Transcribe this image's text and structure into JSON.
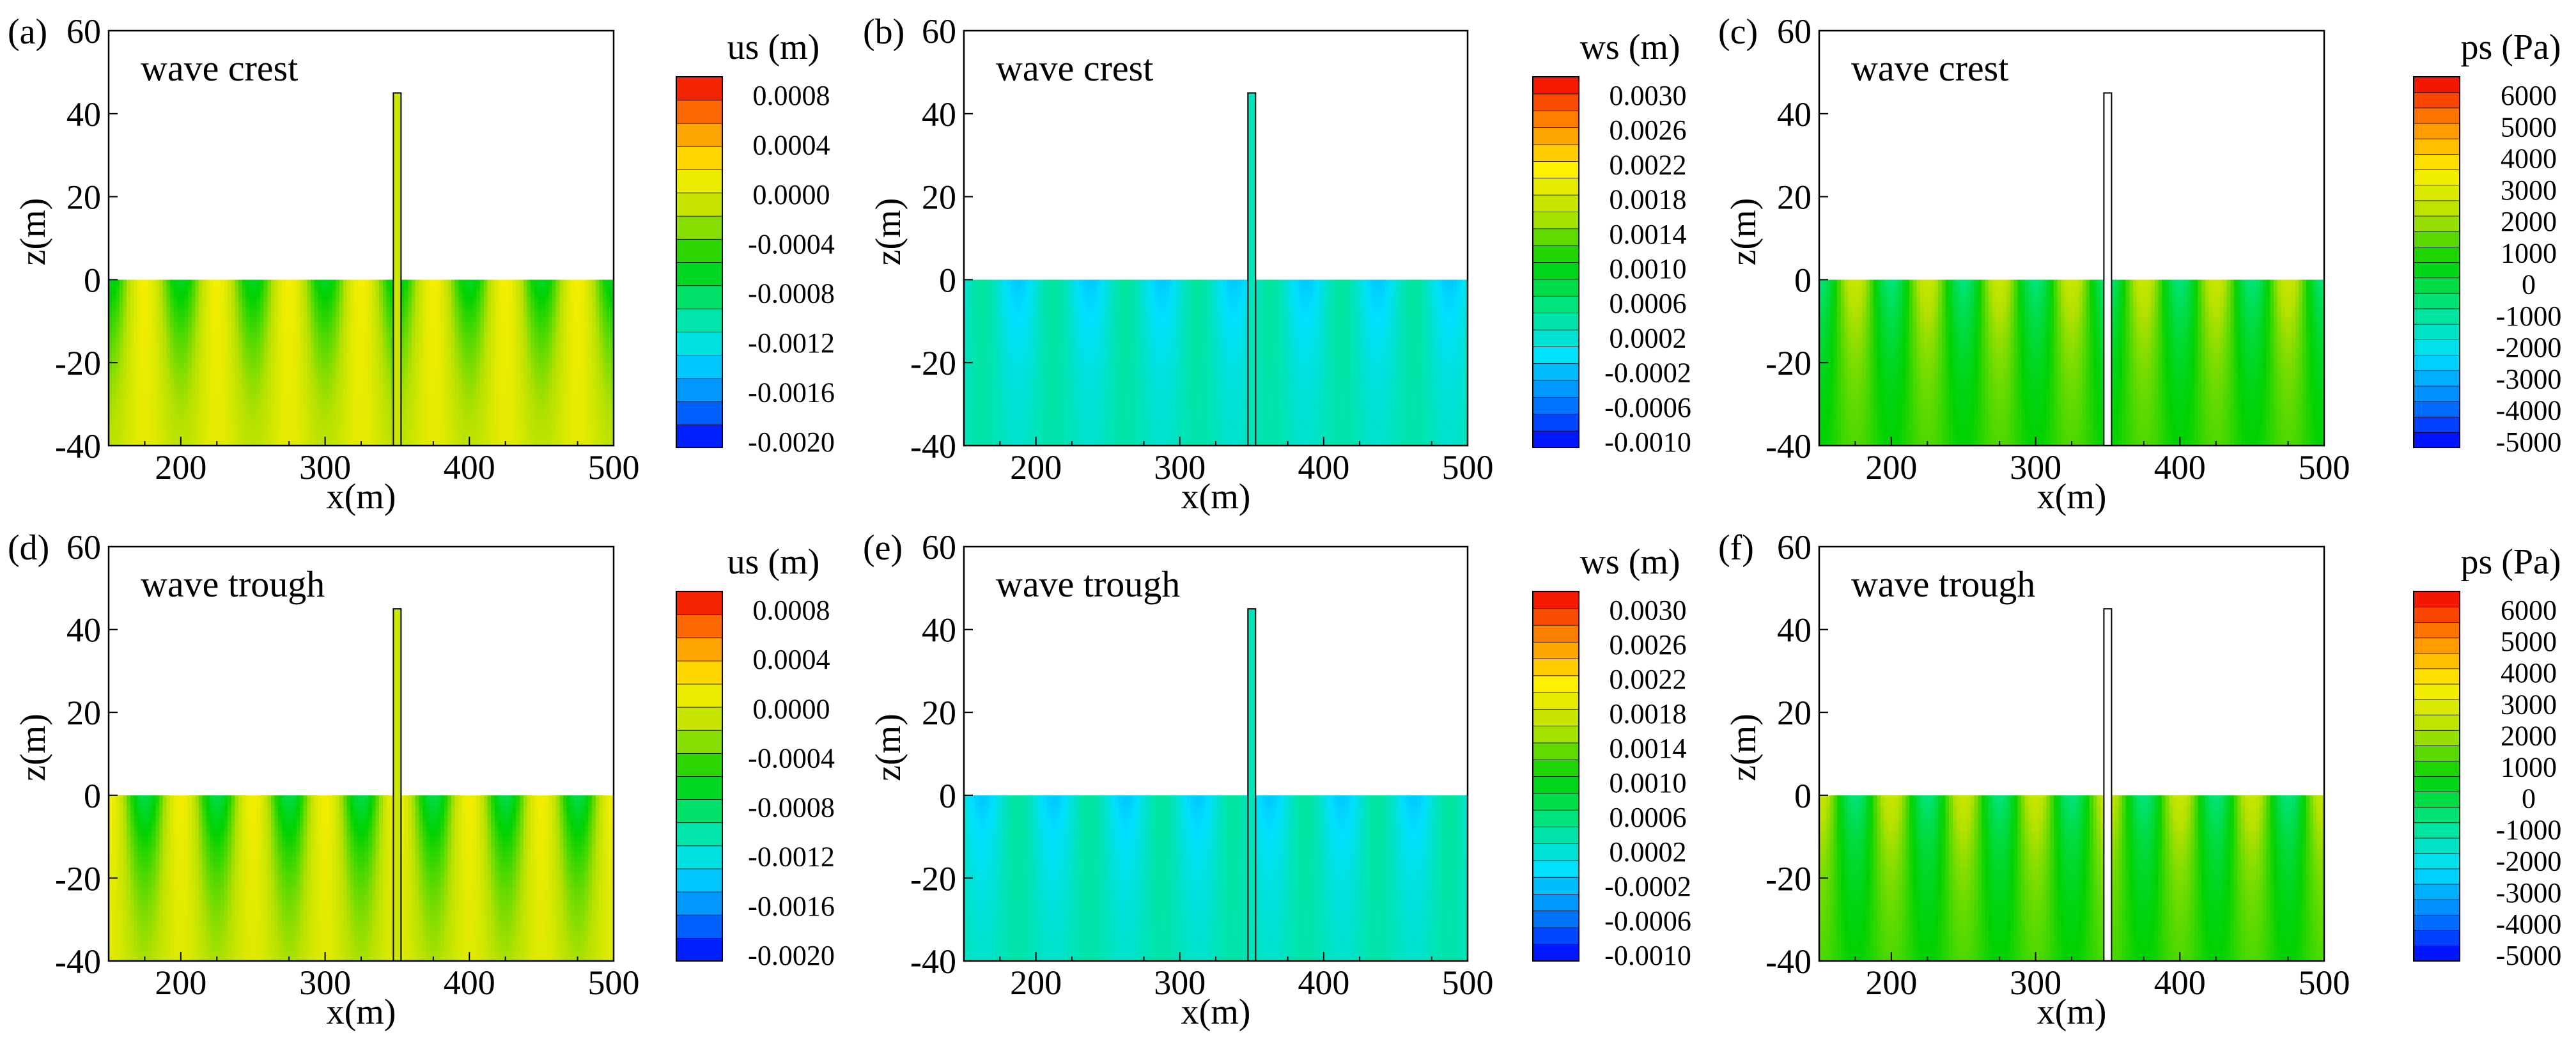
{
  "chart_data": [
    {
      "panel": "(a)",
      "annotation": "wave crest",
      "type": "heatmap",
      "xlabel": "x(m)",
      "ylabel": "z(m)",
      "xlim": [
        150,
        500
      ],
      "ylim": [
        -40,
        60
      ],
      "xticks": [
        "200",
        "300",
        "400",
        "500"
      ],
      "yticks": [
        "-40",
        "-20",
        "0",
        "20",
        "40",
        "60"
      ],
      "colorbar": {
        "title": "us (m)",
        "min": -0.002,
        "max": 0.001,
        "labels": [
          "0.0008",
          "0.0004",
          "0.0000",
          "-0.0004",
          "-0.0008",
          "-0.0012",
          "-0.0016",
          "-0.0020"
        ]
      },
      "field": {
        "mode": "us",
        "phase": 0,
        "base": -0.0002,
        "amp": 0.0004,
        "wavelength": 50,
        "decay": 30,
        "near": 0.0003
      },
      "pile": {
        "x": 350,
        "z_top": 45,
        "z_bottom": -40,
        "value": 0.0
      }
    },
    {
      "panel": "(b)",
      "annotation": "wave crest",
      "type": "heatmap",
      "xlabel": "x(m)",
      "ylabel": "z(m)",
      "xlim": [
        150,
        500
      ],
      "ylim": [
        -40,
        60
      ],
      "xticks": [
        "200",
        "300",
        "400",
        "500"
      ],
      "yticks": [
        "-40",
        "-20",
        "0",
        "20",
        "40",
        "60"
      ],
      "colorbar": {
        "title": "ws (m)",
        "min": -0.001,
        "max": 0.003,
        "labels": [
          "0.0030",
          "0.0026",
          "0.0022",
          "0.0018",
          "0.0014",
          "0.0010",
          "0.0006",
          "0.0002",
          "-0.0002",
          "-0.0006",
          "-0.0010"
        ]
      },
      "field": {
        "mode": "ws",
        "phase": 0,
        "base": 0.00035,
        "amp": 0.00035,
        "wavelength": 50,
        "decay": 30,
        "near": 0.0
      },
      "pile": {
        "x": 350,
        "z_top": 45,
        "z_bottom": -40,
        "value": 0.0003
      }
    },
    {
      "panel": "(c)",
      "annotation": "wave crest",
      "type": "heatmap",
      "xlabel": "x(m)",
      "ylabel": "z(m)",
      "xlim": [
        150,
        500
      ],
      "ylim": [
        -40,
        60
      ],
      "xticks": [
        "200",
        "300",
        "400",
        "500"
      ],
      "yticks": [
        "-40",
        "-20",
        "0",
        "20",
        "40",
        "60"
      ],
      "colorbar": {
        "title": "ps (Pa)",
        "min": -5000,
        "max": 6000,
        "labels": [
          "6000",
          "5000",
          "4000",
          "3000",
          "2000",
          "1000",
          "0",
          "-1000",
          "-2000",
          "-3000",
          "-4000",
          "-5000"
        ]
      },
      "field": {
        "mode": "ps",
        "phase": 0,
        "base": 800,
        "amp": 1500,
        "wavelength": 50,
        "decay": 25,
        "near": 0
      },
      "pile": {
        "x": 350,
        "z_top": 45,
        "z_bottom": -40,
        "value": null
      }
    },
    {
      "panel": "(d)",
      "annotation": "wave trough",
      "type": "heatmap",
      "xlabel": "x(m)",
      "ylabel": "z(m)",
      "xlim": [
        150,
        500
      ],
      "ylim": [
        -40,
        60
      ],
      "xticks": [
        "200",
        "300",
        "400",
        "500"
      ],
      "yticks": [
        "-40",
        "-20",
        "0",
        "20",
        "40",
        "60"
      ],
      "colorbar": {
        "title": "us (m)",
        "min": -0.002,
        "max": 0.001,
        "labels": [
          "0.0008",
          "0.0004",
          "0.0000",
          "-0.0004",
          "-0.0008",
          "-0.0012",
          "-0.0016",
          "-0.0020"
        ]
      },
      "field": {
        "mode": "us",
        "phase": 3.14159,
        "base": -0.00025,
        "amp": 0.00045,
        "wavelength": 50,
        "decay": 30,
        "near": 0.0003
      },
      "pile": {
        "x": 350,
        "z_top": 45,
        "z_bottom": -40,
        "value": 0.0
      }
    },
    {
      "panel": "(e)",
      "annotation": "wave trough",
      "type": "heatmap",
      "xlabel": "x(m)",
      "ylabel": "z(m)",
      "xlim": [
        150,
        500
      ],
      "ylim": [
        -40,
        60
      ],
      "xticks": [
        "200",
        "300",
        "400",
        "500"
      ],
      "yticks": [
        "-40",
        "-20",
        "0",
        "20",
        "40",
        "60"
      ],
      "colorbar": {
        "title": "ws (m)",
        "min": -0.001,
        "max": 0.003,
        "labels": [
          "0.0030",
          "0.0026",
          "0.0022",
          "0.0018",
          "0.0014",
          "0.0010",
          "0.0006",
          "0.0002",
          "-0.0002",
          "-0.0006",
          "-0.0010"
        ]
      },
      "field": {
        "mode": "ws",
        "phase": 3.14159,
        "base": 0.00035,
        "amp": 0.00035,
        "wavelength": 50,
        "decay": 30,
        "near": 0.0
      },
      "pile": {
        "x": 350,
        "z_top": 45,
        "z_bottom": -40,
        "value": 0.0003
      }
    },
    {
      "panel": "(f)",
      "annotation": "wave trough",
      "type": "heatmap",
      "xlabel": "x(m)",
      "ylabel": "z(m)",
      "xlim": [
        150,
        500
      ],
      "ylim": [
        -40,
        60
      ],
      "xticks": [
        "200",
        "300",
        "400",
        "500"
      ],
      "yticks": [
        "-40",
        "-20",
        "0",
        "20",
        "40",
        "60"
      ],
      "colorbar": {
        "title": "ps (Pa)",
        "min": -5000,
        "max": 6000,
        "labels": [
          "6000",
          "5000",
          "4000",
          "3000",
          "2000",
          "1000",
          "0",
          "-1000",
          "-2000",
          "-3000",
          "-4000",
          "-5000"
        ]
      },
      "field": {
        "mode": "ps",
        "phase": 3.14159,
        "base": 800,
        "amp": 1500,
        "wavelength": 50,
        "decay": 25,
        "near": 0
      },
      "pile": {
        "x": 350,
        "z_top": 45,
        "z_bottom": -40,
        "value": null
      }
    }
  ]
}
